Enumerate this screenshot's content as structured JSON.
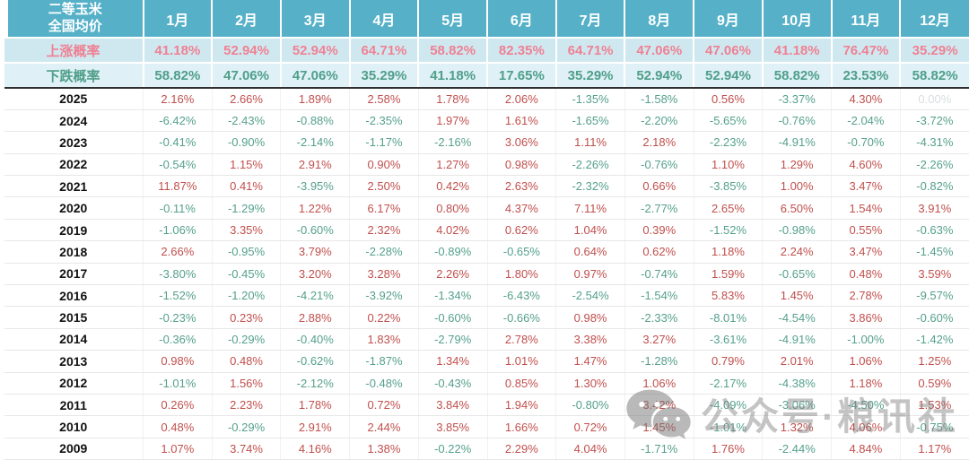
{
  "watermark": {
    "icon": "wechat-icon",
    "text": "公众号·粮讯社"
  },
  "colors": {
    "header_bg": "#56b1c8",
    "rise_row_bg": "#cfe8f0",
    "fall_row_bg": "#dff0f6",
    "rise_text": "#ef8193",
    "fall_text": "#4f9f89",
    "positive_red": "#c0504d",
    "negative_green": "#55a08c",
    "zero_gray": "#d9dde0"
  },
  "chart_data": {
    "type": "table",
    "corner_label": [
      "二等玉米",
      "全国均价"
    ],
    "columns": [
      "1月",
      "2月",
      "3月",
      "4月",
      "5月",
      "6月",
      "7月",
      "8月",
      "9月",
      "10月",
      "11月",
      "12月"
    ],
    "rise_probability": {
      "label": "上涨概率",
      "values_pct": [
        41.18,
        52.94,
        52.94,
        64.71,
        58.82,
        82.35,
        64.71,
        47.06,
        47.06,
        41.18,
        76.47,
        35.29
      ]
    },
    "fall_probability": {
      "label": "下跌概率",
      "values_pct": [
        58.82,
        47.06,
        47.06,
        35.29,
        41.18,
        17.65,
        35.29,
        52.94,
        52.94,
        58.82,
        23.53,
        58.82
      ]
    },
    "years": [
      {
        "year": "2025",
        "changes_pct": [
          2.16,
          2.66,
          1.89,
          2.58,
          1.78,
          2.06,
          -1.35,
          -1.58,
          0.56,
          -3.37,
          4.3,
          0.0
        ]
      },
      {
        "year": "2024",
        "changes_pct": [
          -6.42,
          -2.43,
          -0.88,
          -2.35,
          1.97,
          1.61,
          -1.65,
          -2.2,
          -5.65,
          -0.76,
          -2.04,
          -3.72
        ]
      },
      {
        "year": "2023",
        "changes_pct": [
          -0.41,
          -0.9,
          -2.14,
          -1.17,
          -2.16,
          3.06,
          1.11,
          2.18,
          -2.23,
          -4.91,
          -0.7,
          -4.31
        ]
      },
      {
        "year": "2022",
        "changes_pct": [
          -0.54,
          1.15,
          2.91,
          0.9,
          1.27,
          0.98,
          -2.26,
          -0.76,
          1.1,
          1.29,
          4.6,
          -2.26
        ]
      },
      {
        "year": "2021",
        "changes_pct": [
          11.87,
          0.41,
          -3.95,
          2.5,
          0.42,
          2.63,
          -2.32,
          0.66,
          -3.85,
          1.0,
          3.47,
          -0.82
        ]
      },
      {
        "year": "2020",
        "changes_pct": [
          -0.11,
          -1.29,
          1.22,
          6.17,
          0.8,
          4.37,
          7.11,
          -2.77,
          2.65,
          6.5,
          1.54,
          3.91
        ]
      },
      {
        "year": "2019",
        "changes_pct": [
          -1.06,
          3.35,
          -0.6,
          2.32,
          4.02,
          0.62,
          1.04,
          0.39,
          -1.52,
          -0.98,
          0.55,
          -0.63
        ]
      },
      {
        "year": "2018",
        "changes_pct": [
          2.66,
          -0.95,
          3.79,
          -2.28,
          -0.89,
          -0.65,
          0.64,
          0.62,
          1.18,
          2.24,
          3.47,
          -1.45
        ]
      },
      {
        "year": "2017",
        "changes_pct": [
          -3.8,
          -0.45,
          3.2,
          3.28,
          2.26,
          1.8,
          0.97,
          -0.74,
          1.59,
          -0.65,
          0.48,
          3.59
        ]
      },
      {
        "year": "2016",
        "changes_pct": [
          -1.52,
          -1.2,
          -4.21,
          -3.92,
          -1.34,
          -6.43,
          -2.54,
          -1.54,
          5.83,
          1.45,
          2.78,
          -9.57
        ]
      },
      {
        "year": "2015",
        "changes_pct": [
          -0.23,
          0.23,
          2.88,
          0.22,
          -0.6,
          -0.66,
          0.98,
          -2.33,
          -8.01,
          -4.54,
          3.86,
          -0.6
        ]
      },
      {
        "year": "2014",
        "changes_pct": [
          -0.36,
          -0.29,
          -0.4,
          1.83,
          -2.79,
          2.78,
          3.38,
          3.27,
          -3.61,
          -4.91,
          -1.0,
          -1.42
        ]
      },
      {
        "year": "2013",
        "changes_pct": [
          0.98,
          0.48,
          -0.62,
          -1.87,
          1.34,
          1.01,
          1.47,
          -1.28,
          0.79,
          2.01,
          1.06,
          1.25
        ]
      },
      {
        "year": "2012",
        "changes_pct": [
          -1.01,
          1.56,
          -2.12,
          -0.48,
          -0.43,
          0.85,
          1.3,
          1.06,
          -2.17,
          -4.38,
          1.18,
          0.59
        ]
      },
      {
        "year": "2011",
        "changes_pct": [
          0.26,
          2.23,
          1.78,
          0.72,
          3.84,
          1.94,
          -0.8,
          3.42,
          -4.09,
          -3.06,
          -4.5,
          1.53
        ]
      },
      {
        "year": "2010",
        "changes_pct": [
          0.48,
          -0.29,
          2.91,
          2.44,
          3.85,
          1.66,
          0.72,
          1.45,
          -1.01,
          1.32,
          4.06,
          -0.75
        ]
      },
      {
        "year": "2009",
        "changes_pct": [
          1.07,
          3.74,
          4.16,
          1.38,
          -0.22,
          2.29,
          4.04,
          -1.71,
          1.76,
          -2.44,
          4.84,
          1.17
        ]
      }
    ]
  }
}
